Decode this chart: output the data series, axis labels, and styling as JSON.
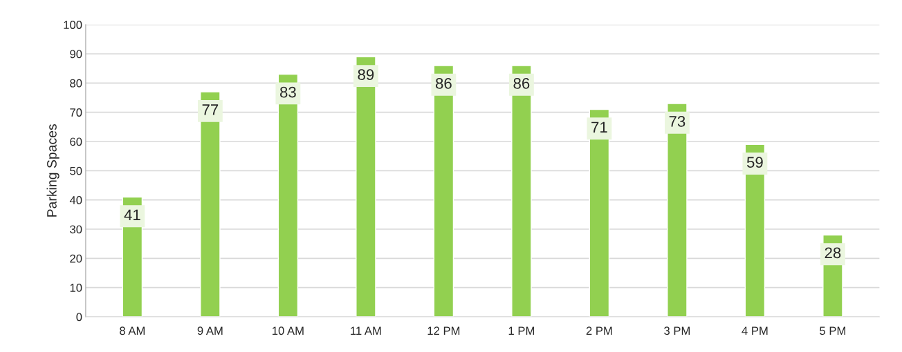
{
  "chart_data": {
    "type": "bar",
    "ylabel": "Parking Spaces",
    "categories": [
      "8 AM",
      "9 AM",
      "10 AM",
      "11 AM",
      "12 PM",
      "1 PM",
      "2 PM",
      "3 PM",
      "4 PM",
      "5 PM"
    ],
    "values": [
      41,
      77,
      83,
      89,
      86,
      86,
      71,
      73,
      59,
      28
    ],
    "color": "#92d050",
    "ylim": [
      0,
      100
    ],
    "yticks": [
      0,
      10,
      20,
      30,
      40,
      50,
      60,
      70,
      80,
      90,
      100
    ],
    "grid": "y",
    "data_labels": true
  }
}
